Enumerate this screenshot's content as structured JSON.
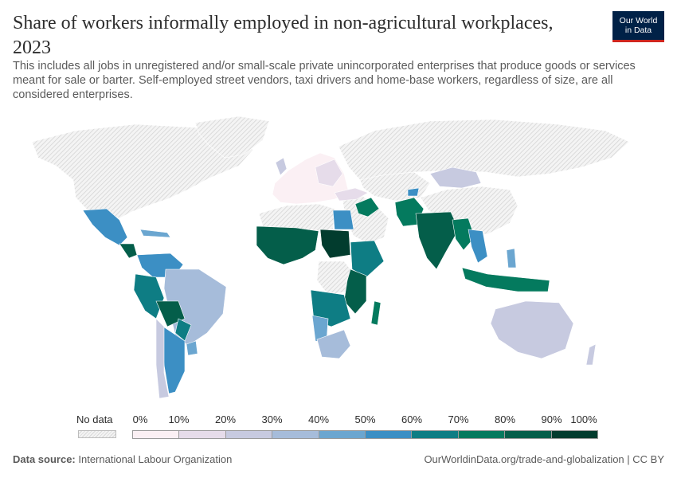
{
  "header": {
    "title": "Share of workers informally employed in non-agricultural workplaces, 2023",
    "subtitle": "This includes all jobs in unregistered and/or small-scale private unincorporated enterprises that produce goods or services meant for sale or barter. Self-employed street vendors, taxi drivers and home-base workers, regardless of size, are all considered enterprises."
  },
  "logo": {
    "line1": "Our World",
    "line2": "in Data"
  },
  "legend": {
    "no_data_label": "No data",
    "ticks": [
      "0%",
      "10%",
      "20%",
      "30%",
      "40%",
      "50%",
      "60%",
      "70%",
      "80%",
      "90%",
      "100%"
    ],
    "colors": [
      "#fbf0f4",
      "#e6dcea",
      "#c7cae0",
      "#a6bcda",
      "#6ba6d0",
      "#3c8fc4",
      "#0e7d84",
      "#047a5e",
      "#045e4a",
      "#023c2e"
    ]
  },
  "footer": {
    "source_label": "Data source:",
    "source_value": "International Labour Organization",
    "link": "OurWorldinData.org/trade-and-globalization | CC BY"
  },
  "colors": {
    "nodata_fill": "#f2f2f2",
    "nodata_hatch": "#d6d6d6",
    "border": "#ffffff"
  }
}
